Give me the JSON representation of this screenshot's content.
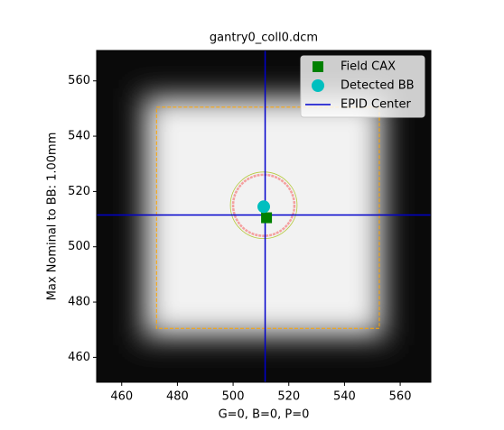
{
  "chart_data": {
    "type": "image",
    "title": "gantry0_coll0.dcm",
    "xlabel": "G=0, B=0, P=0",
    "ylabel": "Max Nominal to BB: 1.00mm",
    "xlim": [
      451,
      571
    ],
    "ylim": [
      451,
      571
    ],
    "xticks": [
      460,
      480,
      500,
      520,
      540,
      560
    ],
    "yticks": [
      460,
      480,
      500,
      520,
      540,
      560
    ],
    "field_rect": {
      "color": "#ffa500",
      "x": [
        472.5,
        552.5
      ],
      "y": [
        470.5,
        550.5
      ]
    },
    "bb_contour": {
      "color": "#f4a0a0",
      "x": 511,
      "y": 515,
      "r": 11
    },
    "series": [
      {
        "name": "Field CAX",
        "color": "#008000",
        "x": 512,
        "y": 510.5
      },
      {
        "name": "Detected BB",
        "color": "#00bfbf",
        "x": 511,
        "y": 514.5
      },
      {
        "name": "EPID Center",
        "color": "#0000cc",
        "x": 511.5,
        "y": 511.5
      }
    ]
  }
}
